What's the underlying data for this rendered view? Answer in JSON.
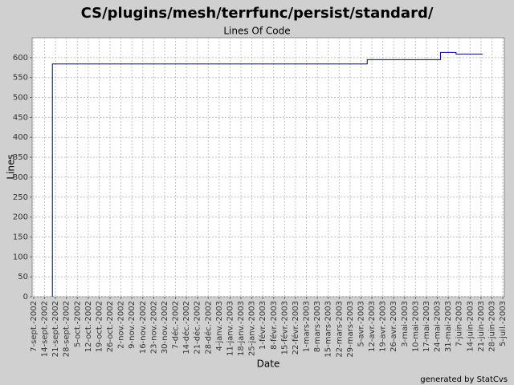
{
  "chart_data": {
    "type": "line",
    "step": true,
    "title": "CS/plugins/mesh/terrfunc/persist/standard/",
    "subtitle": "Lines Of Code",
    "y_label": "Lines",
    "x_label": "Date",
    "footer": "generated by StatCvs",
    "x": [
      "2002-09-19",
      "2002-09-19",
      "2003-04-09",
      "2003-05-26",
      "2003-06-05",
      "2003-06-22"
    ],
    "series": [
      {
        "name": "Lines Of Code",
        "color": "#000080",
        "values": [
          0,
          584,
          595,
          613,
          609,
          609
        ]
      }
    ],
    "xlim": [
      "2002-09-06",
      "2003-07-06"
    ],
    "xticks": [
      {
        "value": "2002-09-07",
        "label": "7-sept.-2002"
      },
      {
        "value": "2002-09-14",
        "label": "14-sept.-2002"
      },
      {
        "value": "2002-09-21",
        "label": "21-sept.-2002"
      },
      {
        "value": "2002-09-28",
        "label": "28-sept.-2002"
      },
      {
        "value": "2002-10-05",
        "label": "5-oct.-2002"
      },
      {
        "value": "2002-10-12",
        "label": "12-oct.-2002"
      },
      {
        "value": "2002-10-19",
        "label": "19-oct.-2002"
      },
      {
        "value": "2002-10-26",
        "label": "26-oct.-2002"
      },
      {
        "value": "2002-11-02",
        "label": "2-nov.-2002"
      },
      {
        "value": "2002-11-09",
        "label": "9-nov.-2002"
      },
      {
        "value": "2002-11-16",
        "label": "16-nov.-2002"
      },
      {
        "value": "2002-11-23",
        "label": "23-nov.-2002"
      },
      {
        "value": "2002-11-30",
        "label": "30-nov.-2002"
      },
      {
        "value": "2002-12-07",
        "label": "7-déc.-2002"
      },
      {
        "value": "2002-12-14",
        "label": "14-déc.-2002"
      },
      {
        "value": "2002-12-21",
        "label": "21-déc.-2002"
      },
      {
        "value": "2002-12-28",
        "label": "28-déc.-2002"
      },
      {
        "value": "2003-01-04",
        "label": "4-janv.-2003"
      },
      {
        "value": "2003-01-11",
        "label": "11-janv.-2003"
      },
      {
        "value": "2003-01-18",
        "label": "18-janv.-2003"
      },
      {
        "value": "2003-01-25",
        "label": "25-janv.-2003"
      },
      {
        "value": "2003-02-01",
        "label": "1-févr.-2003"
      },
      {
        "value": "2003-02-08",
        "label": "8-févr.-2003"
      },
      {
        "value": "2003-02-15",
        "label": "15-févr.-2003"
      },
      {
        "value": "2003-02-22",
        "label": "22-févr.-2003"
      },
      {
        "value": "2003-03-01",
        "label": "1-mars-2003"
      },
      {
        "value": "2003-03-08",
        "label": "8-mars-2003"
      },
      {
        "value": "2003-03-15",
        "label": "15-mars-2003"
      },
      {
        "value": "2003-03-22",
        "label": "22-mars-2003"
      },
      {
        "value": "2003-03-29",
        "label": "29-mars-2003"
      },
      {
        "value": "2003-04-05",
        "label": "5-avr.-2003"
      },
      {
        "value": "2003-04-12",
        "label": "12-avr.-2003"
      },
      {
        "value": "2003-04-19",
        "label": "19-avr.-2003"
      },
      {
        "value": "2003-04-26",
        "label": "26-avr.-2003"
      },
      {
        "value": "2003-05-03",
        "label": "3-mai-2003"
      },
      {
        "value": "2003-05-10",
        "label": "10-mai-2003"
      },
      {
        "value": "2003-05-17",
        "label": "17-mai-2003"
      },
      {
        "value": "2003-05-24",
        "label": "24-mai-2003"
      },
      {
        "value": "2003-05-31",
        "label": "31-mai-2003"
      },
      {
        "value": "2003-06-07",
        "label": "7-juin-2003"
      },
      {
        "value": "2003-06-14",
        "label": "14-juin-2003"
      },
      {
        "value": "2003-06-21",
        "label": "21-juin-2003"
      },
      {
        "value": "2003-06-28",
        "label": "28-juin-2003"
      },
      {
        "value": "2003-07-05",
        "label": "5-juil.-2003"
      }
    ],
    "ylim": [
      0,
      650
    ],
    "yticks": [
      0,
      50,
      100,
      150,
      200,
      250,
      300,
      350,
      400,
      450,
      500,
      550,
      600
    ],
    "grid": true
  }
}
